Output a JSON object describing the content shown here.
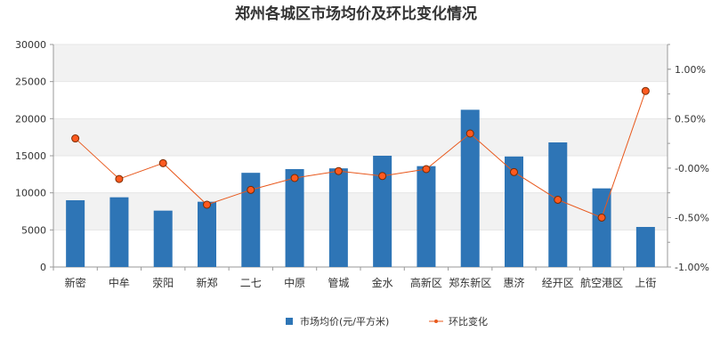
{
  "chart_data": {
    "type": "bar+line",
    "title": "郑州各城区市场均价及环比变化情况",
    "categories": [
      "新密",
      "中牟",
      "荥阳",
      "新郑",
      "二七",
      "中原",
      "管城",
      "金水",
      "高新区",
      "郑东新区",
      "惠济",
      "经开区",
      "航空港区",
      "上街"
    ],
    "series": [
      {
        "name": "市场均价(元/平方米)",
        "type": "bar",
        "axis": "left",
        "color": "#2e75b6",
        "values": [
          9000,
          9400,
          7600,
          8800,
          12700,
          13200,
          13300,
          15000,
          13600,
          21200,
          14900,
          16800,
          10600,
          5400
        ]
      },
      {
        "name": "环比变化",
        "type": "line",
        "axis": "right",
        "color": "#e8581c",
        "values": [
          0.3,
          -0.11,
          0.05,
          -0.37,
          -0.22,
          -0.1,
          -0.03,
          -0.08,
          -0.01,
          0.35,
          -0.04,
          -0.32,
          -0.5,
          0.78
        ]
      }
    ],
    "left_axis": {
      "ylim": [
        0,
        30000
      ],
      "ticks": [
        0,
        5000,
        10000,
        15000,
        20000,
        25000,
        30000
      ]
    },
    "right_axis": {
      "ylim": [
        -1.0,
        1.25
      ],
      "ticks": [
        "-1.00%",
        "-0.50%",
        "-0.00%",
        "0.50%",
        "1.00%"
      ],
      "tick_values": [
        -1.0,
        -0.5,
        0.0,
        0.5,
        1.0
      ]
    },
    "legend": {
      "position": "bottom",
      "items": [
        "市场均价(元/平方米)",
        "环比变化"
      ]
    },
    "grid": "horizontal-bands"
  }
}
